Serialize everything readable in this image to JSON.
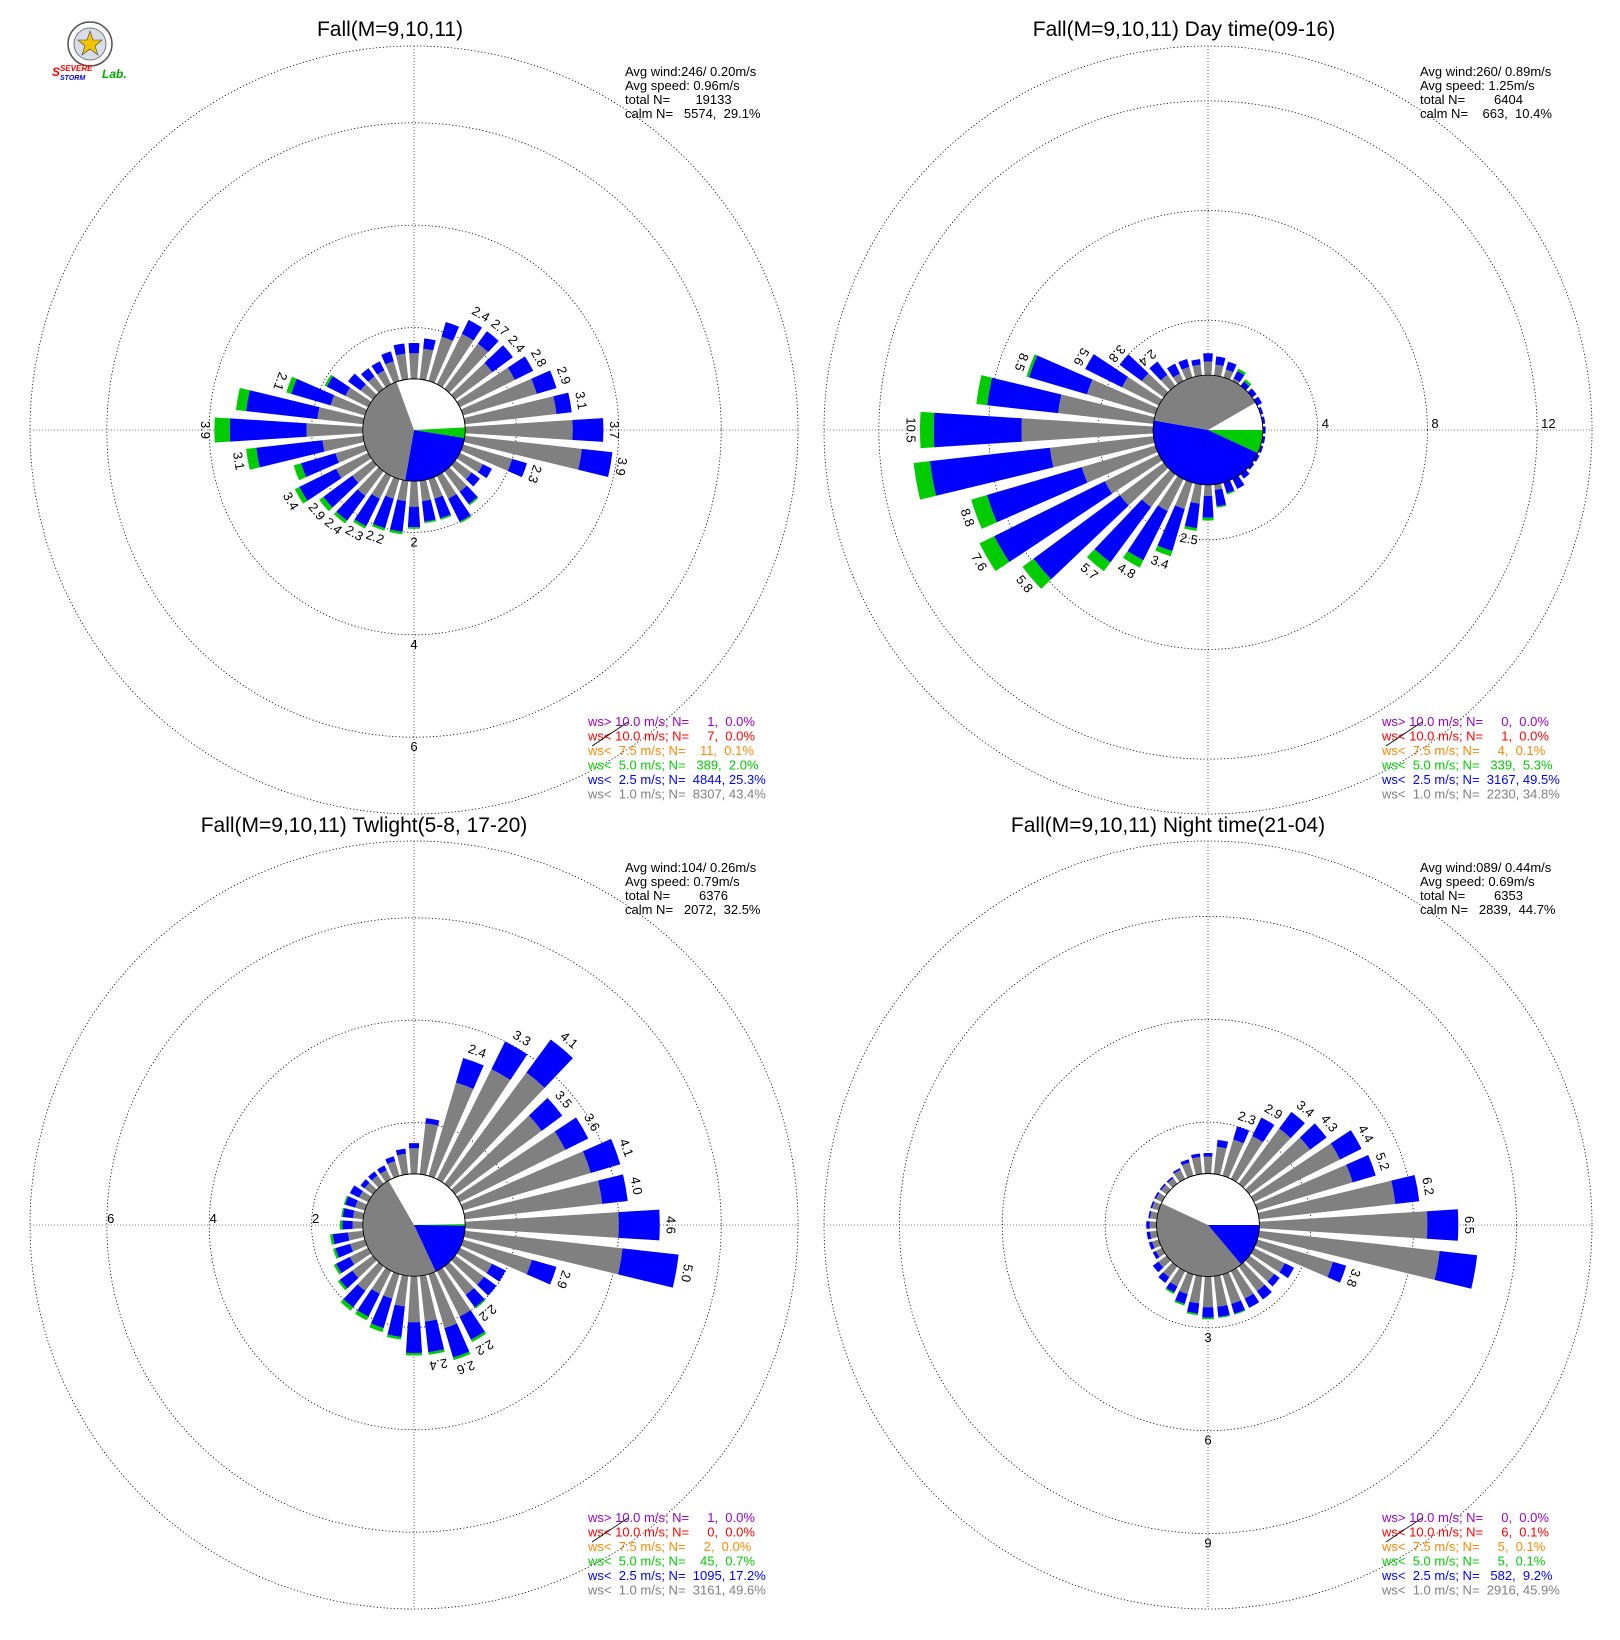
{
  "colors": {
    "calm": "#808080",
    "lt1": "#808080",
    "lt2_5": "#0000ff",
    "lt5": "#00cc00",
    "lt7_5": "#ff8800",
    "lt10": "#ff0000",
    "gt10": "#9900cc"
  },
  "logo": {
    "text_severe": "SEVERE",
    "text_storm": "STORM",
    "text_lab": "Lab."
  },
  "chart_data": [
    {
      "type": "wind-rose",
      "title": "Fall(M=9,10,11)",
      "stats": {
        "avg_wind": "Avg wind:246/ 0.20m/s",
        "avg_speed": "Avg speed: 0.96m/s",
        "total_n": "total N=       19133",
        "calm_n": "calm N=   5574,  29.1%"
      },
      "legend": [
        {
          "text": "ws> 10.0 m/s; N=     1,  0.0%",
          "class": "gt10"
        },
        {
          "text": "ws< 10.0 m/s; N=     7,  0.0%",
          "class": "lt10"
        },
        {
          "text": "ws<  7.5 m/s; N=    11,  0.1%",
          "class": "lt7_5"
        },
        {
          "text": "ws<  5.0 m/s; N=   389,  2.0%",
          "class": "lt5"
        },
        {
          "text": "ws<  2.5 m/s; N=  4844, 25.3%",
          "class": "lt2_5"
        },
        {
          "text": "ws<  1.0 m/s; N=  8307, 43.4%",
          "class": "lt1"
        }
      ],
      "rmax": 7.5,
      "ring_values": [
        2,
        4,
        6
      ],
      "ring_labels": [
        "2",
        "4",
        "6"
      ],
      "tick_axis": "south",
      "calm_radius": 1.0,
      "calm_sectors": [
        {
          "from": 99,
          "to": 190,
          "color": "lt2_5"
        },
        {
          "from": 87,
          "to": 99,
          "color": "lt5"
        },
        {
          "from": 190,
          "to": 340,
          "color": "lt1"
        }
      ],
      "directions": [
        0,
        10,
        20,
        30,
        40,
        50,
        60,
        70,
        80,
        90,
        100,
        110,
        120,
        130,
        140,
        150,
        160,
        170,
        180,
        190,
        200,
        210,
        220,
        230,
        240,
        250,
        260,
        270,
        280,
        290,
        300,
        310,
        320,
        330,
        340,
        350
      ],
      "bars": [
        [
          1.5,
          0.2,
          0.0
        ],
        [
          1.6,
          0.2,
          0.0
        ],
        [
          1.9,
          0.3,
          0.0
        ],
        [
          2.1,
          0.3,
          0.0
        ],
        [
          2.1,
          0.3,
          0.0
        ],
        [
          1.9,
          0.5,
          0.0
        ],
        [
          2.2,
          0.4,
          0.0
        ],
        [
          2.5,
          0.4,
          0.0
        ],
        [
          2.8,
          0.3,
          0.0
        ],
        [
          3.1,
          0.6,
          0.0
        ],
        [
          3.3,
          0.6,
          0.0
        ],
        [
          2.0,
          0.3,
          0.0
        ],
        [
          1.5,
          0.2,
          0.0
        ],
        [
          1.4,
          0.2,
          0.0
        ],
        [
          1.5,
          0.3,
          0.03
        ],
        [
          1.5,
          0.5,
          0.03
        ],
        [
          1.4,
          0.4,
          0.03
        ],
        [
          1.4,
          0.4,
          0.03
        ],
        [
          1.5,
          0.4,
          0.03
        ],
        [
          1.4,
          0.6,
          0.05
        ],
        [
          1.4,
          0.6,
          0.05
        ],
        [
          1.5,
          0.6,
          0.05
        ],
        [
          1.6,
          0.6,
          0.07
        ],
        [
          1.5,
          0.7,
          0.1
        ],
        [
          1.7,
          0.8,
          0.1
        ],
        [
          1.6,
          0.7,
          0.15
        ],
        [
          1.8,
          1.3,
          0.2
        ],
        [
          2.1,
          1.5,
          0.3
        ],
        [
          1.9,
          1.4,
          0.2
        ],
        [
          1.7,
          0.8,
          0.1
        ],
        [
          1.5,
          0.4,
          0.05
        ],
        [
          1.3,
          0.3,
          0.0
        ],
        [
          1.3,
          0.2,
          0.0
        ],
        [
          1.3,
          0.2,
          0.0
        ],
        [
          1.4,
          0.2,
          0.0
        ],
        [
          1.5,
          0.2,
          0.0
        ]
      ],
      "bar_labels": {
        "0": "",
        "40": "2.7",
        "30": "2.4",
        "50": "2.4",
        "60": "2.8",
        "70": "2.9",
        "80": "3.1",
        "90": "3.7",
        "100": "3.9",
        "110": "2.3",
        "200": "2.2",
        "210": "2.3",
        "220": "2.4",
        "230": "2.9",
        "240": "3.4",
        "260": "3.1",
        "270": "3.9",
        "290": "2.1"
      }
    },
    {
      "type": "wind-rose",
      "title": "Fall(M=9,10,11) Day time(09-16)",
      "stats": {
        "avg_wind": "Avg wind:260/ 0.89m/s",
        "avg_speed": "Avg speed: 1.25m/s",
        "total_n": "total N=        6404",
        "calm_n": "calm N=    663,  10.4%"
      },
      "legend": [
        {
          "text": "ws> 10.0 m/s; N=     0,  0.0%",
          "class": "gt10"
        },
        {
          "text": "ws< 10.0 m/s; N=     1,  0.0%",
          "class": "lt10"
        },
        {
          "text": "ws<  7.5 m/s; N=     4,  0.1%",
          "class": "lt7_5"
        },
        {
          "text": "ws<  5.0 m/s; N=   339,  5.3%",
          "class": "lt5"
        },
        {
          "text": "ws<  2.5 m/s; N=  3167, 49.5%",
          "class": "lt2_5"
        },
        {
          "text": "ws<  1.0 m/s; N=  2230, 34.8%",
          "class": "lt1"
        }
      ],
      "rmax": 14.0,
      "ring_values": [
        4,
        8,
        12
      ],
      "ring_labels": [
        "4",
        "8",
        "12"
      ],
      "tick_axis": "east",
      "calm_radius": 2.0,
      "calm_sectors": [
        {
          "from": 90,
          "to": 115,
          "color": "lt5"
        },
        {
          "from": 115,
          "to": 280,
          "color": "lt2_5"
        },
        {
          "from": 280,
          "to": 360,
          "color": "lt1"
        },
        {
          "from": 0,
          "to": 60,
          "color": "lt1"
        }
      ],
      "directions": [
        0,
        10,
        20,
        30,
        40,
        50,
        60,
        70,
        80,
        90,
        100,
        110,
        120,
        130,
        140,
        150,
        160,
        170,
        180,
        190,
        200,
        210,
        220,
        230,
        240,
        250,
        260,
        270,
        280,
        290,
        300,
        310,
        320,
        330,
        340,
        350
      ],
      "bars": [
        [
          2.5,
          0.3,
          0.0
        ],
        [
          2.4,
          0.3,
          0.0
        ],
        [
          2.3,
          0.3,
          0.0
        ],
        [
          2.1,
          0.3,
          0.1
        ],
        [
          2.0,
          0.2,
          0.1
        ],
        [
          1.9,
          0.2,
          0.0
        ],
        [
          1.5,
          0.2,
          0.0
        ],
        [
          1.4,
          0.1,
          0.0
        ],
        [
          1.4,
          0.1,
          0.0
        ],
        [
          1.4,
          0.1,
          0.0
        ],
        [
          1.5,
          0.1,
          0.0
        ],
        [
          1.5,
          0.1,
          0.0
        ],
        [
          1.5,
          0.1,
          0.0
        ],
        [
          1.5,
          0.1,
          0.0
        ],
        [
          1.6,
          0.2,
          0.0
        ],
        [
          1.8,
          0.4,
          0.0
        ],
        [
          2.0,
          0.4,
          0.05
        ],
        [
          2.2,
          0.6,
          0.05
        ],
        [
          2.4,
          0.8,
          0.1
        ],
        [
          2.7,
          0.9,
          0.1
        ],
        [
          3.0,
          1.6,
          0.2
        ],
        [
          3.3,
          2.0,
          0.3
        ],
        [
          3.5,
          2.5,
          0.4
        ],
        [
          4.0,
          3.9,
          0.5
        ],
        [
          4.2,
          4.5,
          0.6
        ],
        [
          4.8,
          3.6,
          0.6
        ],
        [
          5.8,
          4.4,
          0.6
        ],
        [
          6.8,
          3.2,
          0.5
        ],
        [
          5.5,
          2.6,
          0.4
        ],
        [
          4.6,
          2.2,
          0.1
        ],
        [
          3.5,
          1.5,
          0.0
        ],
        [
          3.0,
          1.0,
          0.0
        ],
        [
          2.5,
          0.6,
          0.0
        ],
        [
          2.3,
          0.4,
          0.0
        ],
        [
          2.4,
          0.3,
          0.0
        ],
        [
          2.4,
          0.2,
          0.0
        ]
      ],
      "bar_labels": {
        "190": "2.5",
        "200": "3.4",
        "210": "4.8",
        "220": "5.7",
        "230": "5.8",
        "240": "7.6",
        "250": "8.8",
        "270": "10.5",
        "290": "8.5",
        "300": "5.6",
        "310": "3.8",
        "320": "2.4"
      }
    },
    {
      "type": "wind-rose",
      "title": "Fall(M=9,10,11) Twlight(5-8, 17-20)",
      "stats": {
        "avg_wind": "Avg wind:104/ 0.26m/s",
        "avg_speed": "Avg speed: 0.79m/s",
        "total_n": "total N=        6376",
        "calm_n": "calm N=   2072,  32.5%"
      },
      "legend": [
        {
          "text": "ws> 10.0 m/s; N=     1,  0.0%",
          "class": "gt10"
        },
        {
          "text": "ws< 10.0 m/s; N=     0,  0.0%",
          "class": "lt10"
        },
        {
          "text": "ws<  7.5 m/s; N=     2,  0.0%",
          "class": "lt7_5"
        },
        {
          "text": "ws<  5.0 m/s; N=    45,  0.7%",
          "class": "lt5"
        },
        {
          "text": "ws<  2.5 m/s; N=  1095, 17.2%",
          "class": "lt2_5"
        },
        {
          "text": "ws<  1.0 m/s; N=  3161, 49.6%",
          "class": "lt1"
        }
      ],
      "rmax": 7.5,
      "ring_values": [
        2,
        4,
        6
      ],
      "ring_labels": [
        "2",
        "4",
        "6"
      ],
      "tick_axis": "west",
      "calm_radius": 1.0,
      "calm_sectors": [
        {
          "from": 90,
          "to": 155,
          "color": "lt2_5"
        },
        {
          "from": 89,
          "to": 91,
          "color": "lt5"
        },
        {
          "from": 155,
          "to": 330,
          "color": "lt1"
        }
      ],
      "directions": [
        0,
        10,
        20,
        30,
        40,
        50,
        60,
        70,
        80,
        90,
        100,
        110,
        120,
        130,
        140,
        150,
        160,
        170,
        180,
        190,
        200,
        210,
        220,
        230,
        240,
        250,
        260,
        270,
        280,
        290,
        300,
        310,
        320,
        330,
        340,
        350
      ],
      "bars": [
        [
          1.5,
          0.1,
          0.0
        ],
        [
          2.0,
          0.1,
          0.0
        ],
        [
          2.9,
          0.5,
          0.0
        ],
        [
          3.4,
          0.6,
          0.0
        ],
        [
          3.7,
          0.8,
          0.0
        ],
        [
          3.1,
          0.5,
          0.0
        ],
        [
          3.3,
          0.5,
          0.0
        ],
        [
          3.6,
          0.6,
          0.0
        ],
        [
          3.7,
          0.5,
          0.0
        ],
        [
          4.0,
          0.8,
          0.0
        ],
        [
          4.1,
          1.1,
          0.0
        ],
        [
          2.4,
          0.5,
          0.0
        ],
        [
          1.7,
          0.3,
          0.0
        ],
        [
          1.7,
          0.3,
          0.0
        ],
        [
          1.7,
          0.3,
          0.03
        ],
        [
          2.0,
          0.5,
          0.05
        ],
        [
          2.1,
          0.6,
          0.05
        ],
        [
          1.9,
          0.6,
          0.05
        ],
        [
          1.9,
          0.6,
          0.05
        ],
        [
          1.6,
          0.6,
          0.05
        ],
        [
          1.5,
          0.6,
          0.08
        ],
        [
          1.5,
          0.5,
          0.08
        ],
        [
          1.6,
          0.4,
          0.08
        ],
        [
          1.5,
          0.3,
          0.05
        ],
        [
          1.4,
          0.3,
          0.05
        ],
        [
          1.3,
          0.3,
          0.05
        ],
        [
          1.3,
          0.3,
          0.05
        ],
        [
          1.2,
          0.2,
          0.05
        ],
        [
          1.2,
          0.2,
          0.03
        ],
        [
          1.2,
          0.2,
          0.03
        ],
        [
          1.2,
          0.2,
          0.0
        ],
        [
          1.2,
          0.1,
          0.0
        ],
        [
          1.2,
          0.1,
          0.0
        ],
        [
          1.2,
          0.1,
          0.0
        ],
        [
          1.3,
          0.1,
          0.0
        ],
        [
          1.4,
          0.1,
          0.0
        ]
      ],
      "bar_labels": {
        "20": "2.4",
        "30": "3.3",
        "40": "4.1",
        "50": "3.5",
        "60": "3.6",
        "70": "4.1",
        "80": "4.0",
        "90": "4.6",
        "100": "5.0",
        "110": "2.9",
        "150": "2.2",
        "160": "2.6",
        "170": "2.4",
        "140": "2.2"
      }
    },
    {
      "type": "wind-rose",
      "title": "Fall(M=9,10,11) Night time(21-04)",
      "stats": {
        "avg_wind": "Avg wind:089/ 0.44m/s",
        "avg_speed": "Avg speed: 0.69m/s",
        "total_n": "total N=        6353",
        "calm_n": "calm N=   2839,  44.7%"
      },
      "legend": [
        {
          "text": "ws> 10.0 m/s; N=     0,  0.0%",
          "class": "gt10"
        },
        {
          "text": "ws< 10.0 m/s; N=     6,  0.1%",
          "class": "lt10"
        },
        {
          "text": "ws<  7.5 m/s; N=     5,  0.1%",
          "class": "lt7_5"
        },
        {
          "text": "ws<  5.0 m/s; N=     5,  0.1%",
          "class": "lt5"
        },
        {
          "text": "ws<  2.5 m/s; N=   582,  9.2%",
          "class": "lt2_5"
        },
        {
          "text": "ws<  1.0 m/s; N=  2916, 45.9%",
          "class": "lt1"
        }
      ],
      "rmax": 11.2,
      "ring_values": [
        3,
        6,
        9
      ],
      "ring_labels": [
        "3",
        "6",
        "9"
      ],
      "tick_axis": "south",
      "calm_radius": 1.5,
      "calm_sectors": [
        {
          "from": 90,
          "to": 140,
          "color": "lt2_5"
        },
        {
          "from": 140,
          "to": 295,
          "color": "lt1"
        }
      ],
      "directions": [
        0,
        10,
        20,
        30,
        40,
        50,
        60,
        70,
        80,
        90,
        100,
        110,
        120,
        130,
        140,
        150,
        160,
        170,
        180,
        190,
        200,
        210,
        220,
        230,
        240,
        250,
        260,
        270,
        280,
        290,
        300,
        310,
        320,
        330,
        340,
        350
      ],
      "bars": [
        [
          2.0,
          0.1,
          0.0
        ],
        [
          2.3,
          0.2,
          0.0
        ],
        [
          2.6,
          0.4,
          0.0
        ],
        [
          2.9,
          0.6,
          0.0
        ],
        [
          3.5,
          0.6,
          0.0
        ],
        [
          3.7,
          0.6,
          0.0
        ],
        [
          4.3,
          0.7,
          0.0
        ],
        [
          4.4,
          0.7,
          0.0
        ],
        [
          5.5,
          0.7,
          0.0
        ],
        [
          6.4,
          0.9,
          0.0
        ],
        [
          6.8,
          1.1,
          0.0
        ],
        [
          3.8,
          0.4,
          0.0
        ],
        [
          2.5,
          0.3,
          0.0
        ],
        [
          2.4,
          0.2,
          0.0
        ],
        [
          2.4,
          0.3,
          0.0
        ],
        [
          2.4,
          0.3,
          0.0
        ],
        [
          2.4,
          0.3,
          0.03
        ],
        [
          2.4,
          0.3,
          0.03
        ],
        [
          2.4,
          0.3,
          0.05
        ],
        [
          2.3,
          0.3,
          0.05
        ],
        [
          2.1,
          0.3,
          0.05
        ],
        [
          2.0,
          0.2,
          0.05
        ],
        [
          1.9,
          0.2,
          0.0
        ],
        [
          1.8,
          0.2,
          0.0
        ],
        [
          1.7,
          0.1,
          0.0
        ],
        [
          1.7,
          0.1,
          0.0
        ],
        [
          1.7,
          0.1,
          0.0
        ],
        [
          1.7,
          0.1,
          0.0
        ],
        [
          1.7,
          0.05,
          0.0
        ],
        [
          1.7,
          0.05,
          0.0
        ],
        [
          1.7,
          0.05,
          0.0
        ],
        [
          1.7,
          0.05,
          0.0
        ],
        [
          1.7,
          0.05,
          0.0
        ],
        [
          1.8,
          0.05,
          0.0
        ],
        [
          1.9,
          0.1,
          0.0
        ],
        [
          2.0,
          0.1,
          0.0
        ]
      ],
      "bar_labels": {
        "20": "2.3",
        "30": "2.9",
        "40": "3.4",
        "50": "4.3",
        "60": "4.4",
        "70": "5.2",
        "80": "6.2",
        "90": "6.5",
        "110": "3.8"
      }
    }
  ]
}
